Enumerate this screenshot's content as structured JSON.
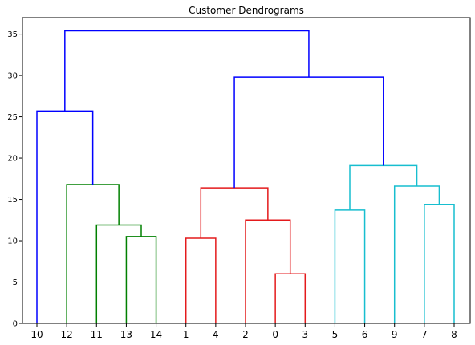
{
  "chart_data": {
    "type": "dendrogram",
    "title": "Customer Dendrograms",
    "xlabel": "",
    "ylabel": "",
    "ylim": [
      0,
      37
    ],
    "yticks": [
      0,
      5,
      10,
      15,
      20,
      25,
      30,
      35
    ],
    "grid": false,
    "leaves": [
      "10",
      "12",
      "11",
      "13",
      "14",
      "1",
      "4",
      "2",
      "0",
      "3",
      "5",
      "6",
      "9",
      "7",
      "8"
    ],
    "colors": {
      "green": "#008000",
      "red": "#e41a1c",
      "cyan": "#17becf",
      "blue": "#0000ff"
    },
    "links": [
      {
        "left": "13",
        "right": "14",
        "height": 10.5,
        "color": "green"
      },
      {
        "left": "11",
        "right": "13+14",
        "height": 11.9,
        "color": "green"
      },
      {
        "left": "12",
        "right": "11+13+14",
        "height": 16.8,
        "color": "green"
      },
      {
        "left": "10",
        "right": "12+11+13+14",
        "height": 25.7,
        "color": "blue"
      },
      {
        "left": "1",
        "right": "4",
        "height": 10.3,
        "color": "red"
      },
      {
        "left": "0",
        "right": "3",
        "height": 6.0,
        "color": "red"
      },
      {
        "left": "2",
        "right": "0+3",
        "height": 12.5,
        "color": "red"
      },
      {
        "left": "1+4",
        "right": "2+0+3",
        "height": 16.4,
        "color": "red"
      },
      {
        "left": "5",
        "right": "6",
        "height": 13.7,
        "color": "cyan"
      },
      {
        "left": "7",
        "right": "8",
        "height": 14.4,
        "color": "cyan"
      },
      {
        "left": "9",
        "right": "7+8",
        "height": 16.6,
        "color": "cyan"
      },
      {
        "left": "5+6",
        "right": "9+7+8",
        "height": 19.1,
        "color": "cyan"
      },
      {
        "left": "1+4+2+0+3",
        "right": "5+6+9+7+8",
        "height": 29.8,
        "color": "blue"
      },
      {
        "left": "10+12+11+13+14",
        "right": "1+4+2+0+3+5+6+9+7+8",
        "height": 35.4,
        "color": "blue"
      }
    ]
  }
}
